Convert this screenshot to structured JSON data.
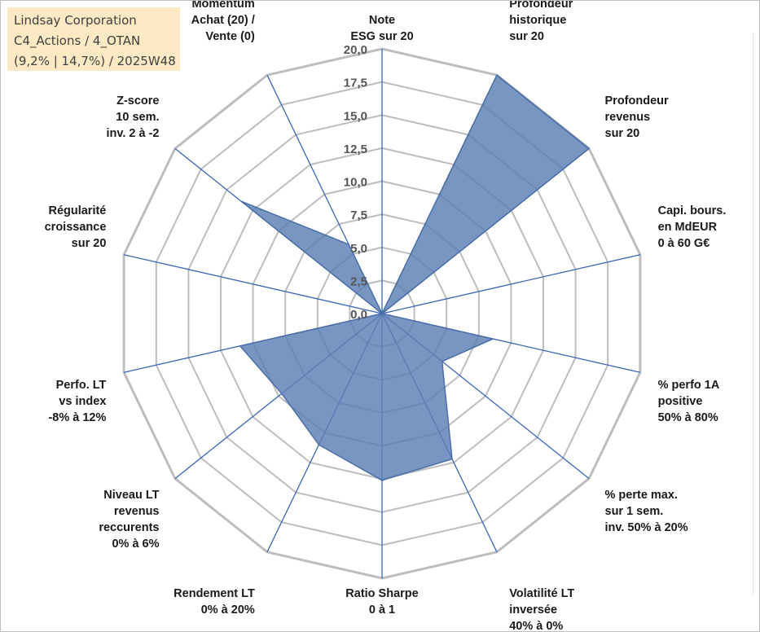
{
  "info_box": {
    "line1": "Lindsay Corporation",
    "line2": "C4_Actions / 4_OTAN",
    "line3": "(9,2% | 14,7%) / 2025W48"
  },
  "colors": {
    "area_fill": "#5b7fb5",
    "area_stroke": "#4a6fa8",
    "spoke": "#3b66b8",
    "ring": "#bdbdbd",
    "info_bg": "#fde9c4"
  },
  "chart_data": {
    "type": "radar",
    "title": "",
    "r_range": [
      0,
      20
    ],
    "r_ticks": [
      "0,0",
      "2,5",
      "5,0",
      "7,5",
      "10,0",
      "12,5",
      "15,0",
      "17,5",
      "20,0"
    ],
    "grid": true,
    "legend": "none",
    "categories": [
      [
        "Note",
        "ESG sur 20"
      ],
      [
        "Profondeur",
        "historique",
        "sur 20"
      ],
      [
        "Profondeur",
        "revenus",
        "sur 20"
      ],
      [
        "Capi. bours.",
        "en MdEUR",
        "0 à 60 G€"
      ],
      [
        "% perfo 1A",
        "positive",
        "50% à 80%"
      ],
      [
        "% perte max.",
        "sur 1 sem.",
        "inv. 50% à 20%"
      ],
      [
        "Volatilité LT",
        "inversée",
        "40% à 0%"
      ],
      [
        "Ratio Sharpe",
        "0 à 1"
      ],
      [
        "Rendement LT",
        "0% à 20%"
      ],
      [
        "Niveau LT",
        "revenus",
        "reccurents",
        "0% à 6%"
      ],
      [
        "Perfo. LT",
        "vs index",
        "-8% à 12%"
      ],
      [
        "Régularité",
        "croissance",
        "sur 20"
      ],
      [
        "Z-score",
        "10 sem.",
        "inv. 2 à -2"
      ],
      [
        "Momentum",
        "Achat (20) /",
        "Vente (0)"
      ]
    ],
    "series": [
      {
        "name": "Lindsay Corporation",
        "values": [
          0,
          20,
          20,
          0,
          8.6,
          5.8,
          12.2,
          12.6,
          11.0,
          9.7,
          11.0,
          0,
          13.6,
          5.8
        ]
      }
    ]
  }
}
